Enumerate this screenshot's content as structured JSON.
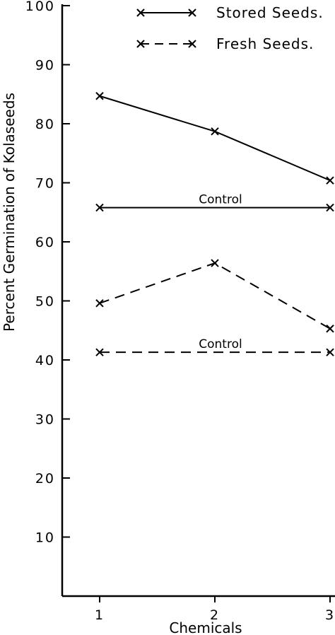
{
  "chart_data": {
    "type": "line",
    "title": "",
    "xlabel": "Chemicals",
    "ylabel": "Percent Germination of Kolaseeds",
    "x": [
      1,
      2,
      3
    ],
    "x_tick_labels": [
      "1",
      "2",
      "3"
    ],
    "y_tick_labels": [
      "10",
      "20",
      "30",
      "40",
      "50",
      "60",
      "70",
      "80",
      "90",
      "100"
    ],
    "ylim": [
      0,
      100
    ],
    "xlim": [
      0.7,
      3
    ],
    "grid": false,
    "legend_position": "top-right",
    "series": [
      {
        "name": "Stored Seeds.",
        "style": "solid",
        "values": [
          84.7,
          78.7,
          70.4
        ]
      },
      {
        "name": "Fresh Seeds.",
        "style": "dashed",
        "values": [
          49.6,
          56.4,
          45.3
        ]
      }
    ],
    "reference_lines": [
      {
        "label": "Control",
        "style": "solid",
        "value": 65.8
      },
      {
        "label": "Control",
        "style": "dashed",
        "value": 41.3
      }
    ],
    "colors": {
      "ink": "#000000",
      "background": "#ffffff"
    }
  }
}
